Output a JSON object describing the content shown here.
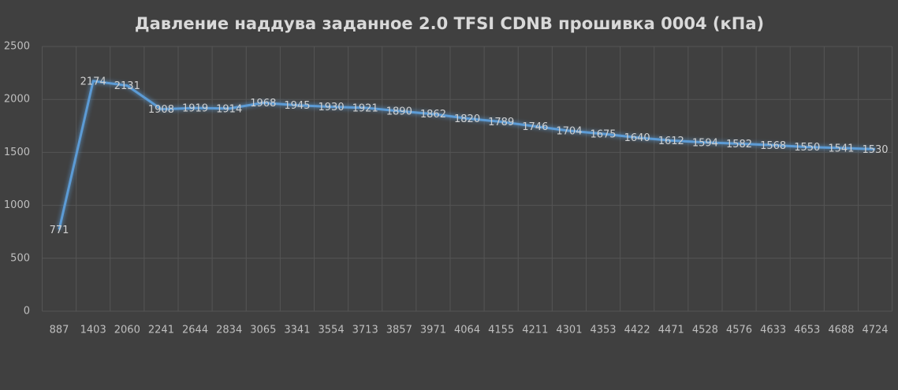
{
  "chart_data": {
    "type": "line",
    "title": "Давление наддува заданное 2.0 TFSI CDNB прошивка 0004 (кПа)",
    "categories": [
      "887",
      "1403",
      "2060",
      "2241",
      "2644",
      "2834",
      "3065",
      "3341",
      "3554",
      "3713",
      "3857",
      "3971",
      "4064",
      "4155",
      "4211",
      "4301",
      "4353",
      "4422",
      "4471",
      "4528",
      "4576",
      "4633",
      "4653",
      "4688",
      "4724"
    ],
    "series": [
      {
        "name": null,
        "color": "#5b9bd5",
        "values": [
          771,
          2174,
          2131,
          1908,
          1919,
          1914,
          1968,
          1945,
          1930,
          1921,
          1890,
          1862,
          1820,
          1789,
          1746,
          1704,
          1675,
          1640,
          1612,
          1594,
          1582,
          1568,
          1550,
          1541,
          1530
        ]
      }
    ],
    "ylim": [
      0,
      2500
    ],
    "yticks": [
      0,
      500,
      1000,
      1500,
      2000,
      2500
    ],
    "grid": true,
    "data_labels": true
  }
}
